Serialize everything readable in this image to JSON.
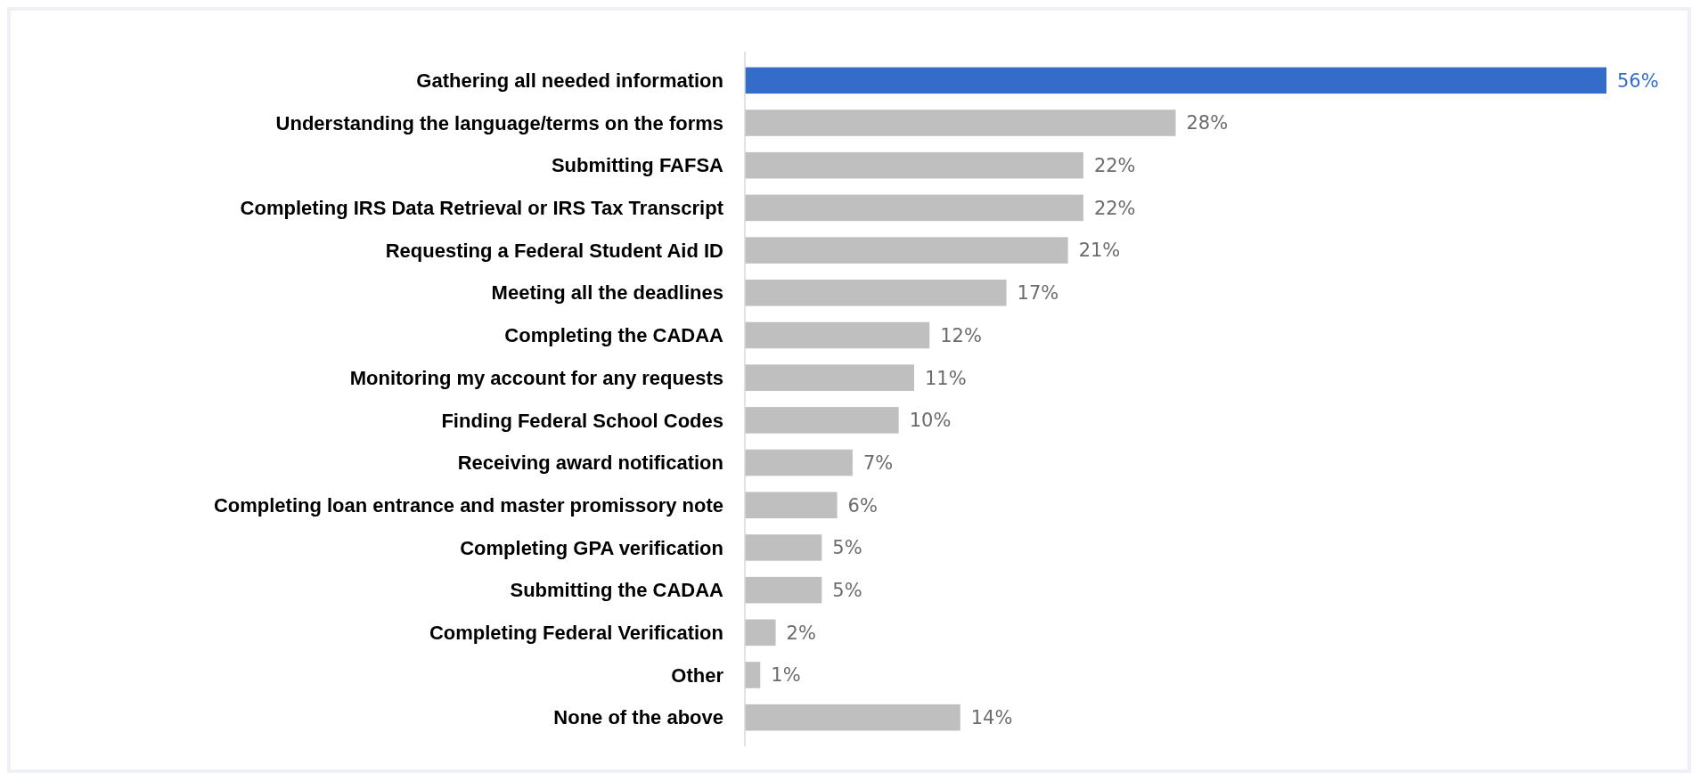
{
  "chart_data": {
    "type": "bar",
    "orientation": "horizontal",
    "categories": [
      "Gathering all needed information ",
      "Understanding the language/terms on the forms",
      "Submitting FAFSA",
      "Completing IRS Data Retrieval or IRS Tax Transcript",
      "Requesting a Federal Student Aid ID",
      "Meeting all the deadlines",
      "Completing the CADAA ",
      "Monitoring my account for any requests",
      "Finding Federal School Codes",
      "Receiving award notification",
      "Completing loan entrance and master promissory note ",
      "Completing GPA verification",
      "Submitting the CADAA",
      "Completing Federal Verification",
      "Other",
      "None of the above"
    ],
    "values": [
      56,
      28,
      22,
      22,
      21,
      17,
      12,
      11,
      10,
      7,
      6,
      5,
      5,
      2,
      1,
      14
    ],
    "colors": [
      "#346dc9",
      "#bfbfbf",
      "#bfbfbf",
      "#bfbfbf",
      "#bfbfbf",
      "#bfbfbf",
      "#bfbfbf",
      "#bfbfbf",
      "#bfbfbf",
      "#bfbfbf",
      "#bfbfbf",
      "#bfbfbf",
      "#bfbfbf",
      "#bfbfbf",
      "#bfbfbf",
      "#bfbfbf"
    ],
    "value_labels": [
      "56%",
      "28%",
      "22%",
      "22%",
      "21%",
      "17%",
      "12%",
      "11%",
      "10%",
      "7%",
      "6%",
      "5%",
      "5%",
      "2%",
      "1%",
      "14%"
    ]
  }
}
